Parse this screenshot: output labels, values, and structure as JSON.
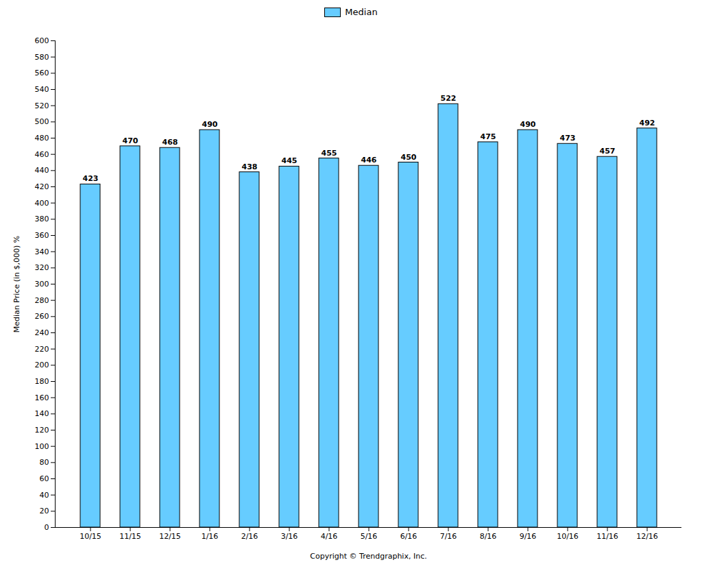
{
  "chart_data": {
    "type": "bar",
    "categories": [
      "10/15",
      "11/15",
      "12/15",
      "1/16",
      "2/16",
      "3/16",
      "4/16",
      "5/16",
      "6/16",
      "7/16",
      "8/16",
      "9/16",
      "10/16",
      "11/16",
      "12/16"
    ],
    "series": [
      {
        "name": "Median",
        "color": "#66CCFF",
        "values": [
          423,
          470,
          468,
          490,
          438,
          445,
          455,
          446,
          450,
          522,
          475,
          490,
          473,
          457,
          492
        ]
      }
    ],
    "xlabel": "Copyright © Trendgraphix, Inc.",
    "ylabel": "Median Price (in $,000) %",
    "ylim": [
      0,
      600
    ],
    "yticks": [
      0,
      20,
      40,
      60,
      80,
      100,
      120,
      140,
      160,
      180,
      200,
      220,
      240,
      260,
      280,
      300,
      320,
      340,
      360,
      380,
      400,
      420,
      440,
      460,
      480,
      500,
      520,
      540,
      560,
      580,
      600
    ],
    "grid": false,
    "legend": "top",
    "data_labels": true
  }
}
